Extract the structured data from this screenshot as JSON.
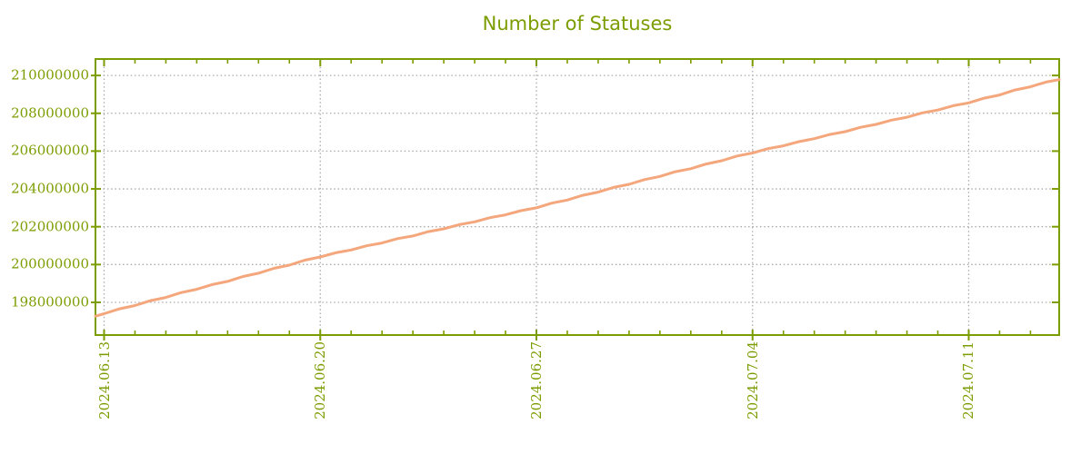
{
  "colors": {
    "axis": "#7c9d01",
    "line": "#f4a67c",
    "grid": "#aaaaaa",
    "background": "#ffffff"
  },
  "chart_data": {
    "type": "line",
    "title": "Number of Statuses",
    "xlabel": "",
    "ylabel": "",
    "legend": "none",
    "grid": "dotted",
    "x_tick_labels": [
      "2024.06.13",
      "2024.06.20",
      "2024.06.27",
      "2024.07.04",
      "2024.07.11"
    ],
    "x_tick_days": [
      0,
      7,
      14,
      21,
      28
    ],
    "y_ticks": [
      198000000,
      200000000,
      202000000,
      204000000,
      206000000,
      208000000,
      210000000
    ],
    "x_range_days": [
      -0.28,
      30.93
    ],
    "y_range": [
      196270000,
      210870000
    ],
    "series": [
      {
        "name": "Number of Statuses",
        "points": [
          [
            -0.28,
            197270000
          ],
          [
            0,
            197400000
          ],
          [
            0.5,
            197660000
          ],
          [
            1,
            197830000
          ],
          [
            1.5,
            198090000
          ],
          [
            2,
            198260000
          ],
          [
            2.5,
            198520000
          ],
          [
            3,
            198690000
          ],
          [
            3.5,
            198940000
          ],
          [
            4,
            199110000
          ],
          [
            4.5,
            199370000
          ],
          [
            5,
            199540000
          ],
          [
            5.5,
            199800000
          ],
          [
            6,
            199970000
          ],
          [
            6.5,
            200230000
          ],
          [
            7,
            200400000
          ],
          [
            7.5,
            200620000
          ],
          [
            8,
            200770000
          ],
          [
            8.5,
            200990000
          ],
          [
            9,
            201140000
          ],
          [
            9.5,
            201370000
          ],
          [
            10,
            201510000
          ],
          [
            10.5,
            201740000
          ],
          [
            11,
            201890000
          ],
          [
            11.5,
            202110000
          ],
          [
            12,
            202260000
          ],
          [
            12.5,
            202480000
          ],
          [
            13,
            202630000
          ],
          [
            13.5,
            202850000
          ],
          [
            14,
            203000000
          ],
          [
            14.5,
            203250000
          ],
          [
            15,
            203410000
          ],
          [
            15.5,
            203660000
          ],
          [
            16,
            203830000
          ],
          [
            16.5,
            204080000
          ],
          [
            17,
            204240000
          ],
          [
            17.5,
            204490000
          ],
          [
            18,
            204660000
          ],
          [
            18.5,
            204910000
          ],
          [
            19,
            205070000
          ],
          [
            19.5,
            205320000
          ],
          [
            20,
            205490000
          ],
          [
            20.5,
            205740000
          ],
          [
            21,
            205900000
          ],
          [
            21.5,
            206130000
          ],
          [
            22,
            206280000
          ],
          [
            22.5,
            206500000
          ],
          [
            23,
            206660000
          ],
          [
            23.5,
            206880000
          ],
          [
            24,
            207030000
          ],
          [
            24.5,
            207260000
          ],
          [
            25,
            207410000
          ],
          [
            25.5,
            207640000
          ],
          [
            26,
            207790000
          ],
          [
            26.5,
            208020000
          ],
          [
            27,
            208170000
          ],
          [
            27.5,
            208400000
          ],
          [
            28,
            208550000
          ],
          [
            28.5,
            208800000
          ],
          [
            29,
            208970000
          ],
          [
            29.5,
            209230000
          ],
          [
            30,
            209400000
          ],
          [
            30.5,
            209650000
          ],
          [
            30.93,
            209780000
          ]
        ]
      }
    ]
  }
}
